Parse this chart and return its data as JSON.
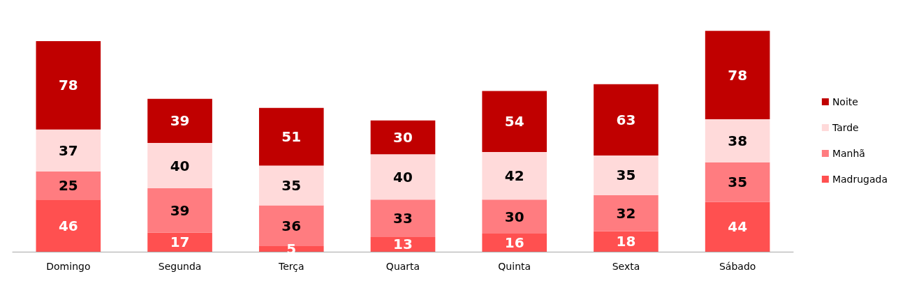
{
  "chart_data": {
    "type": "bar",
    "stacked": true,
    "data_labels": true,
    "legend": "right",
    "categories": [
      "Domingo",
      "Segunda",
      "Terça",
      "Quarta",
      "Quinta",
      "Sexta",
      "Sábado"
    ],
    "series": [
      {
        "name": "Madrugada",
        "color": "#ff5050",
        "values": [
          46,
          17,
          5,
          13,
          16,
          18,
          44
        ]
      },
      {
        "name": "Manhã",
        "color": "#ff7c80",
        "values": [
          25,
          39,
          36,
          33,
          30,
          32,
          35
        ]
      },
      {
        "name": "Tarde",
        "color": "#ffdada",
        "values": [
          37,
          40,
          35,
          40,
          42,
          35,
          38
        ]
      },
      {
        "name": "Noite",
        "color": "#c00000",
        "values": [
          78,
          39,
          51,
          30,
          54,
          63,
          78
        ]
      }
    ]
  }
}
